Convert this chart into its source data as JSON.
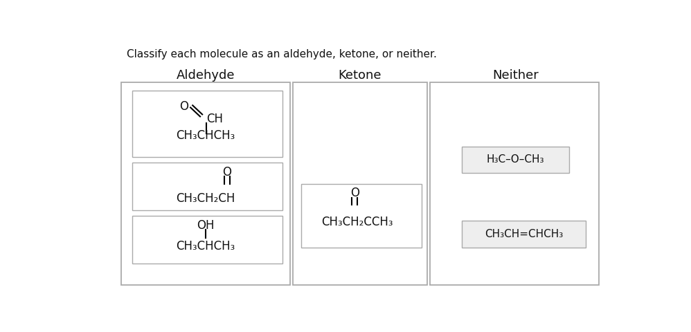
{
  "title": "Classify each molecule as an aldehyde, ketone, or neither.",
  "columns": [
    "Aldehyde",
    "Ketone",
    "Neither"
  ],
  "background_color": "#ffffff",
  "text_color": "#111111",
  "font_family": "DejaVu Sans",
  "box_color": "#aaaaaa",
  "neither_box_fill": "#eeeeee"
}
